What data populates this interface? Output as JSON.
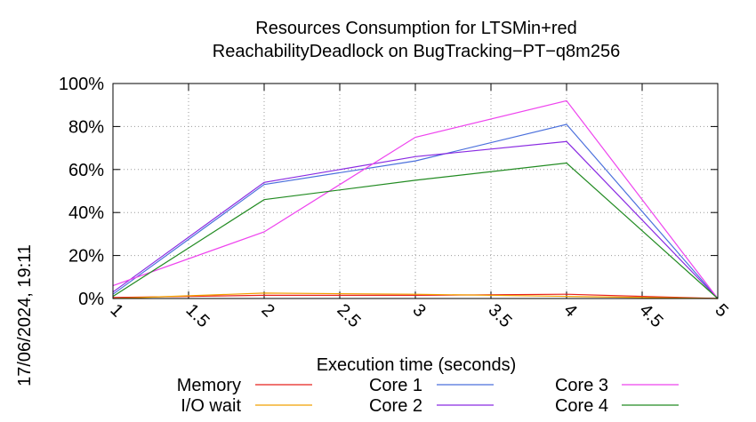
{
  "chart_data": {
    "type": "line",
    "title": "Resources Consumption for LTSMin+red",
    "subtitle": "ReachabilityDeadlock on BugTracking−PT−q8m256",
    "xlabel": "Execution time (seconds)",
    "ylabel": "",
    "timestamp": "17/06/2024, 19:11",
    "xlim": [
      1,
      5
    ],
    "ylim": [
      0,
      100
    ],
    "x_ticks": [
      "1",
      "1.5",
      "2",
      "2.5",
      "3",
      "3.5",
      "4",
      "4.5",
      "5"
    ],
    "y_ticks": [
      "0%",
      "20%",
      "40%",
      "60%",
      "80%",
      "100%"
    ],
    "grid": true,
    "legend_position": "bottom",
    "x": [
      1,
      2,
      3,
      4,
      5
    ],
    "series": [
      {
        "name": "Memory",
        "color": "#e8201c",
        "values": [
          0.5,
          1.5,
          1.5,
          2,
          0
        ]
      },
      {
        "name": "I/O wait",
        "color": "#f0a000",
        "values": [
          0,
          2.5,
          2,
          1,
          0
        ]
      },
      {
        "name": "Core 1",
        "color": "#4a6fdc",
        "values": [
          2,
          53,
          64,
          81,
          0
        ]
      },
      {
        "name": "Core 2",
        "color": "#8a2be2",
        "values": [
          3,
          54,
          66,
          73,
          0
        ]
      },
      {
        "name": "Core 3",
        "color": "#ee44ee",
        "values": [
          6,
          31,
          75,
          92,
          0
        ]
      },
      {
        "name": "Core 4",
        "color": "#228b22",
        "values": [
          1,
          46,
          55,
          63,
          0
        ]
      }
    ]
  }
}
